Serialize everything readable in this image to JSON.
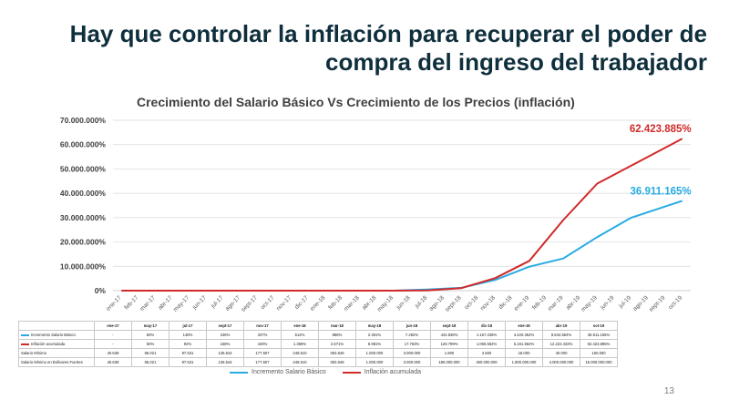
{
  "slide": {
    "title": "Hay que controlar la inflación para recuperar el poder de compra del ingreso del trabajador",
    "page_number": "13"
  },
  "colors": {
    "salario": "#29abe2",
    "inflacion": "#d12a2a",
    "title": "#0f2f3d",
    "grid": "#d9d9d9"
  },
  "chart_data": {
    "type": "line",
    "title": "Crecimiento del Salario Básico Vs Crecimiento de los Precios (inflación)",
    "ylim": [
      0,
      70000000
    ],
    "yticks": [
      "0%",
      "10.000.000%",
      "20.000.000%",
      "30.000.000%",
      "40.000.000%",
      "50.000.000%",
      "60.000.000%",
      "70.000.000%"
    ],
    "ytick_values": [
      0,
      10000000,
      20000000,
      30000000,
      40000000,
      50000000,
      60000000,
      70000000
    ],
    "grid": true,
    "legend_position": "bottom",
    "x": [
      "ene-17",
      "feb-17",
      "mar-17",
      "abr-17",
      "may-17",
      "jun-17",
      "jul-17",
      "ago-17",
      "sept-17",
      "oct-17",
      "nov-17",
      "dic-17",
      "ene-18",
      "feb-18",
      "mar-18",
      "abr-18",
      "may-18",
      "jun-18",
      "jul-18",
      "ago-18",
      "sept-18",
      "oct-18",
      "nov-18",
      "dic-18",
      "ene-19",
      "feb-19",
      "mar-19",
      "abr-19",
      "may-19",
      "jun-19",
      "jul-19",
      "ago-19",
      "sept-19",
      "oct-19"
    ],
    "series": [
      {
        "name": "Incremento Salario Básico",
        "color": "#29abe2",
        "points": [
          [
            0,
            0
          ],
          [
            2,
            60
          ],
          [
            4,
            148
          ],
          [
            6,
            236
          ],
          [
            8,
            337
          ],
          [
            10,
            512
          ],
          [
            12,
            886
          ],
          [
            14,
            2361
          ],
          [
            16,
            7282
          ],
          [
            18,
            442836
          ],
          [
            20,
            1167236
          ],
          [
            22,
            4420352
          ],
          [
            24,
            9842564
          ],
          [
            26,
            13222430
          ],
          [
            28,
            22000000
          ],
          [
            30,
            30000000
          ],
          [
            33,
            36911165
          ]
        ],
        "end_label": "36.911.165%"
      },
      {
        "name": "Inflación acumulada",
        "color": "#d12a2a",
        "points": [
          [
            0,
            0
          ],
          [
            2,
            50
          ],
          [
            4,
            92
          ],
          [
            6,
            168
          ],
          [
            8,
            429
          ],
          [
            10,
            1359
          ],
          [
            12,
            2671
          ],
          [
            14,
            8981
          ],
          [
            16,
            17763
          ],
          [
            18,
            129799
          ],
          [
            20,
            1065562
          ],
          [
            22,
            5161564
          ],
          [
            24,
            12222433
          ],
          [
            26,
            29000000
          ],
          [
            28,
            44000000
          ],
          [
            33,
            62423885
          ]
        ],
        "end_label": "62.423.885%"
      }
    ],
    "table": {
      "columns": [
        "ene-17",
        "may-17",
        "jul-17",
        "sept-17",
        "nov-17",
        "ene-18",
        "mar-18",
        "may-18",
        "jun-18",
        "sept-18",
        "dic-18",
        "ene-19",
        "abr-19",
        "oct-19"
      ],
      "rows": [
        {
          "label": "Incremento Salario Básico",
          "key": "salario",
          "values": [
            "-",
            "60%",
            "148%",
            "236%",
            "337%",
            "512%",
            "886%",
            "2.361%",
            "7.282%",
            "442.836%",
            "1.167.236%",
            "4.420.352%",
            "9.842.564%",
            "36.911.165%"
          ]
        },
        {
          "label": "Inflación acumulada",
          "key": "inflacion",
          "values": [
            "-",
            "50%",
            "92%",
            "168%",
            "429%",
            "1.359%",
            "2.671%",
            "8.981%",
            "17.763%",
            "129.799%",
            "1.065.562%",
            "5.161.564%",
            "12.222.433%",
            "62.423.885%"
          ]
        },
        {
          "label": "Salario Mínimo",
          "key": "",
          "values": [
            "40.638",
            "65.021",
            "97.531",
            "136.544",
            "177.507",
            "248.510",
            "392.646",
            "1.000.000",
            "3.000.000",
            "1.800",
            "4.500",
            "18.000",
            "40.000",
            "150.000"
          ]
        },
        {
          "label": "Salario Mínimo en Bolívares Fuertes",
          "key": "",
          "values": [
            "40.638",
            "65.021",
            "97.531",
            "136.544",
            "177.507",
            "248.510",
            "392.646",
            "1.000.000",
            "3.000.000",
            "180.000.000",
            "450.000.000",
            "1.800.000.000",
            "4.000.000.000",
            "15.000.000.000"
          ]
        }
      ]
    }
  }
}
